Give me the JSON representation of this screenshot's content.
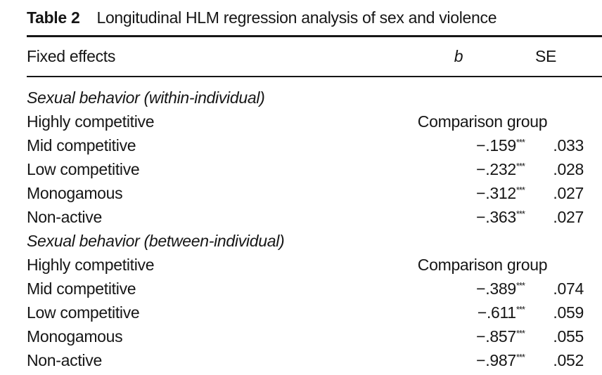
{
  "table": {
    "caption": {
      "label": "Table 2",
      "text": "Longitudinal HLM regression analysis of sex and violence"
    },
    "columns": {
      "fixed_effects": "Fixed effects",
      "b": "b",
      "se": "SE"
    },
    "sections": [
      {
        "header": "Sexual behavior (within-individual)",
        "rows": [
          {
            "label": "Highly competitive",
            "span": "Comparison group"
          },
          {
            "label": "Mid competitive",
            "b": "−.159",
            "stars": "***",
            "se": ".033"
          },
          {
            "label": "Low competitive",
            "b": "−.232",
            "stars": "***",
            "se": ".028"
          },
          {
            "label": "Monogamous",
            "b": "−.312",
            "stars": "***",
            "se": ".027"
          },
          {
            "label": "Non-active",
            "b": "−.363",
            "stars": "***",
            "se": ".027"
          }
        ]
      },
      {
        "header": "Sexual behavior (between-individual)",
        "rows": [
          {
            "label": "Highly competitive",
            "span": "Comparison group"
          },
          {
            "label": "Mid competitive",
            "b": "−.389",
            "stars": "***",
            "se": ".074"
          },
          {
            "label": "Low competitive",
            "b": "−.611",
            "stars": "***",
            "se": ".059"
          },
          {
            "label": "Monogamous",
            "b": "−.857",
            "stars": "***",
            "se": ".055"
          },
          {
            "label": "Non-active",
            "b": "−.987",
            "stars": "***",
            "se": ".052"
          }
        ]
      }
    ]
  }
}
